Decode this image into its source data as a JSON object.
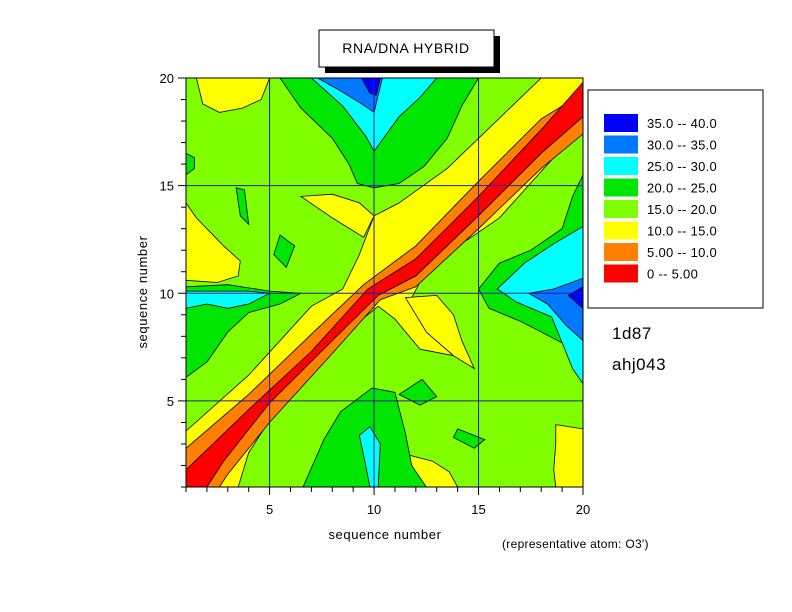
{
  "chart_data": {
    "type": "heatmap",
    "title": "RNA/DNA HYBRID",
    "xlabel": "sequence number",
    "ylabel": "sequence number",
    "note": "(representative atom: O3')",
    "pdb_id": "1d87",
    "code": "ahj043",
    "x_ticks": [
      "5",
      "10",
      "15",
      "20"
    ],
    "y_ticks": [
      "5",
      "10",
      "15",
      "20"
    ],
    "xlim": [
      1,
      20
    ],
    "ylim": [
      1,
      20
    ],
    "grid": true,
    "legend_position": "right",
    "levels": [
      {
        "label": "35.0  --  40.0",
        "min": 35,
        "max": 40,
        "color": "#0000ff"
      },
      {
        "label": "30.0  --  35.0",
        "min": 30,
        "max": 35,
        "color": "#0078ff"
      },
      {
        "label": "25.0  --  30.0",
        "min": 25,
        "max": 30,
        "color": "#00ffff"
      },
      {
        "label": "20.0  --  25.0",
        "min": 20,
        "max": 25,
        "color": "#00e600"
      },
      {
        "label": "15.0  --  20.0",
        "min": 15,
        "max": 20,
        "color": "#80ff00"
      },
      {
        "label": "10.0  --  15.0",
        "min": 10,
        "max": 15,
        "color": "#ffff00"
      },
      {
        "label": "5.00  --  10.0",
        "min": 5,
        "max": 10,
        "color": "#ff8000"
      },
      {
        "label": "0  --  5.00",
        "min": 0,
        "max": 5,
        "color": "#ff0000"
      }
    ]
  }
}
